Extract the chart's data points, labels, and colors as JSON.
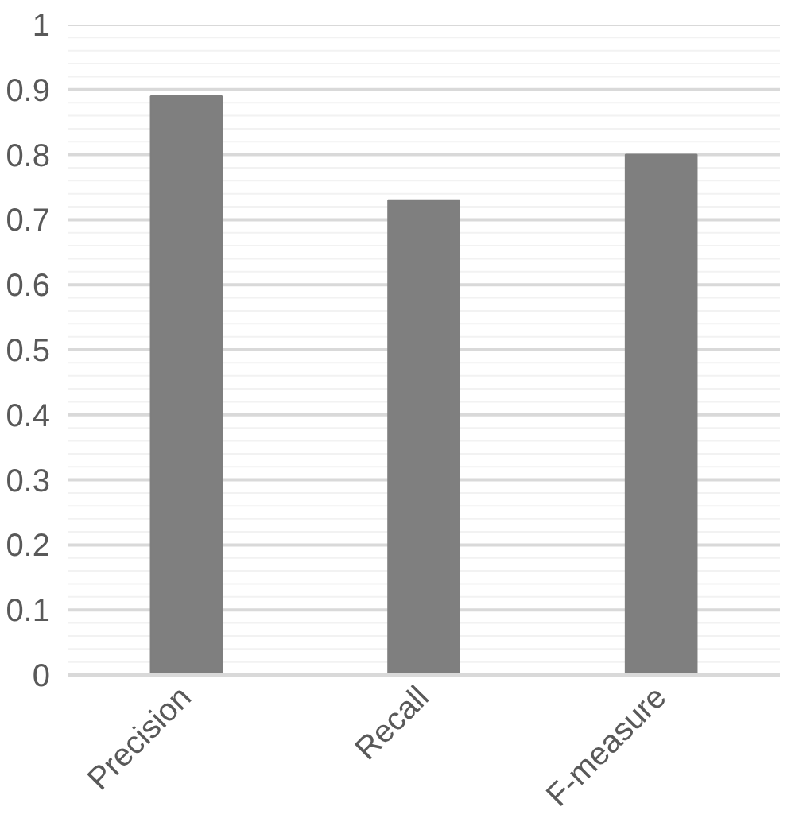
{
  "chart_data": {
    "type": "bar",
    "categories": [
      "Precision",
      "Recall",
      "F-measure"
    ],
    "values": [
      0.89,
      0.73,
      0.8
    ],
    "color": "#7f7f7f",
    "ylim": [
      0,
      1
    ],
    "yticks": [
      0,
      0.1,
      0.2,
      0.3,
      0.4,
      0.5,
      0.6,
      0.7,
      0.8,
      0.9,
      1
    ],
    "grid": "y"
  }
}
